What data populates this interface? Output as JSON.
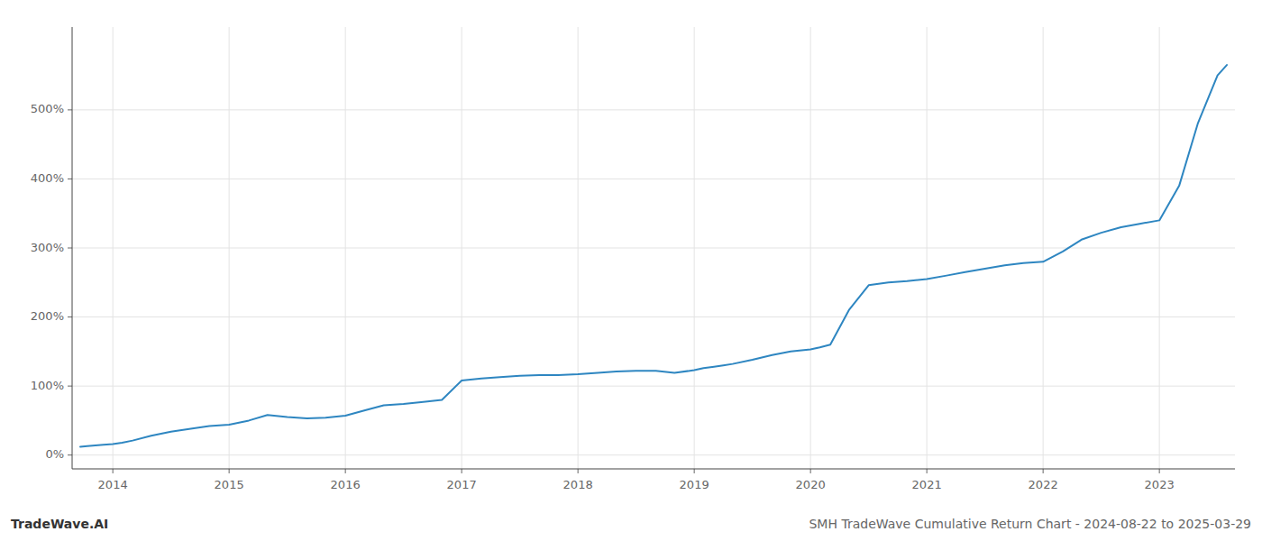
{
  "chart_data": {
    "type": "line",
    "title": "SMH TradeWave Cumulative Return Chart - 2024-08-22 to 2025-03-29",
    "annotations": [
      "TradeWave.AI"
    ],
    "color": "#2e86c1",
    "grid": true,
    "x": [
      2013.72,
      2013.78,
      2013.85,
      2013.92,
      2014.0,
      2014.08,
      2014.17,
      2014.33,
      2014.5,
      2014.67,
      2014.83,
      2015.0,
      2015.17,
      2015.33,
      2015.5,
      2015.67,
      2015.83,
      2016.0,
      2016.17,
      2016.33,
      2016.5,
      2016.67,
      2016.83,
      2017.0,
      2017.17,
      2017.33,
      2017.5,
      2017.67,
      2017.83,
      2018.0,
      2018.17,
      2018.33,
      2018.5,
      2018.67,
      2018.83,
      2019.0,
      2019.08,
      2019.17,
      2019.25,
      2019.33,
      2019.5,
      2019.67,
      2019.83,
      2020.0,
      2020.08,
      2020.17,
      2020.33,
      2020.5,
      2020.67,
      2020.83,
      2021.0,
      2021.17,
      2021.33,
      2021.5,
      2021.67,
      2021.83,
      2022.0,
      2022.17,
      2022.33,
      2022.5,
      2022.67,
      2022.83,
      2023.0,
      2023.17,
      2023.33,
      2023.5,
      2023.58
    ],
    "values": [
      12,
      13,
      14,
      15,
      16,
      18,
      21,
      28,
      34,
      38,
      42,
      44,
      50,
      58,
      55,
      53,
      54,
      57,
      65,
      72,
      74,
      77,
      80,
      108,
      111,
      113,
      115,
      116,
      116,
      117,
      119,
      121,
      122,
      122,
      119,
      123,
      126,
      128,
      130,
      132,
      138,
      145,
      150,
      153,
      156,
      160,
      210,
      246,
      250,
      252,
      255,
      260,
      265,
      270,
      275,
      278,
      280,
      295,
      312,
      322,
      330,
      335,
      340,
      390,
      480,
      550,
      565
    ],
    "xlim": [
      2013.65,
      2023.65
    ],
    "xticks": [
      2014,
      2015,
      2016,
      2017,
      2018,
      2019,
      2020,
      2021,
      2022,
      2023
    ],
    "ylim": [
      -20,
      620
    ],
    "yticks": [
      {
        "value": 0,
        "label": "0%"
      },
      {
        "value": 100,
        "label": "100%"
      },
      {
        "value": 200,
        "label": "200%"
      },
      {
        "value": 300,
        "label": "300%"
      },
      {
        "value": 400,
        "label": "400%"
      },
      {
        "value": 500,
        "label": "500%"
      }
    ]
  }
}
